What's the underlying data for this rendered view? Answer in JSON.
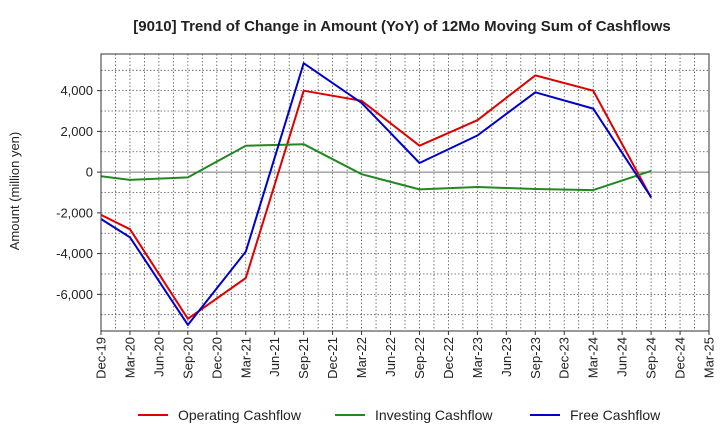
{
  "chart_data": {
    "type": "line",
    "title": "[9010]  Trend of Change in Amount (YoY) of 12Mo Moving Sum of Cashflows",
    "xlabel": "",
    "ylabel": "Amount (million yen)",
    "categories": [
      "Dec-19",
      "Mar-20",
      "Jun-20",
      "Sep-20",
      "Dec-20",
      "Mar-21",
      "Jun-21",
      "Sep-21",
      "Dec-21",
      "Mar-22",
      "Jun-22",
      "Sep-22",
      "Dec-22",
      "Mar-23",
      "Jun-23",
      "Sep-23",
      "Dec-23",
      "Mar-24",
      "Jun-24",
      "Sep-24",
      "Dec-24",
      "Mar-25"
    ],
    "ylim": [
      -7800,
      5800
    ],
    "yticks": [
      4000,
      2000,
      0,
      -2000,
      -4000,
      -6000
    ],
    "ytick_labels": [
      "4,000",
      "2,000",
      "0",
      "-2,000",
      "-4,000",
      "-6,000"
    ],
    "grid": true,
    "legend_position": "bottom",
    "series": [
      {
        "name": "Operating Cashflow",
        "color": "#dd0000",
        "values": [
          -2100,
          -2800,
          null,
          -7200,
          null,
          -5200,
          null,
          4000,
          null,
          3500,
          null,
          1300,
          null,
          2550,
          null,
          4750,
          null,
          4000,
          null,
          -1250,
          null,
          null
        ]
      },
      {
        "name": "Investing Cashflow",
        "color": "#228822",
        "values": [
          -200,
          -380,
          null,
          -260,
          null,
          1300,
          null,
          1370,
          null,
          -100,
          null,
          -850,
          null,
          -730,
          null,
          -830,
          null,
          -880,
          null,
          60,
          null,
          null
        ]
      },
      {
        "name": "Free Cashflow",
        "color": "#0000cc",
        "values": [
          -2300,
          -3200,
          null,
          -7500,
          null,
          -3900,
          null,
          5350,
          null,
          3400,
          null,
          450,
          null,
          1800,
          null,
          3920,
          null,
          3120,
          null,
          -1230,
          null,
          null
        ]
      }
    ]
  }
}
